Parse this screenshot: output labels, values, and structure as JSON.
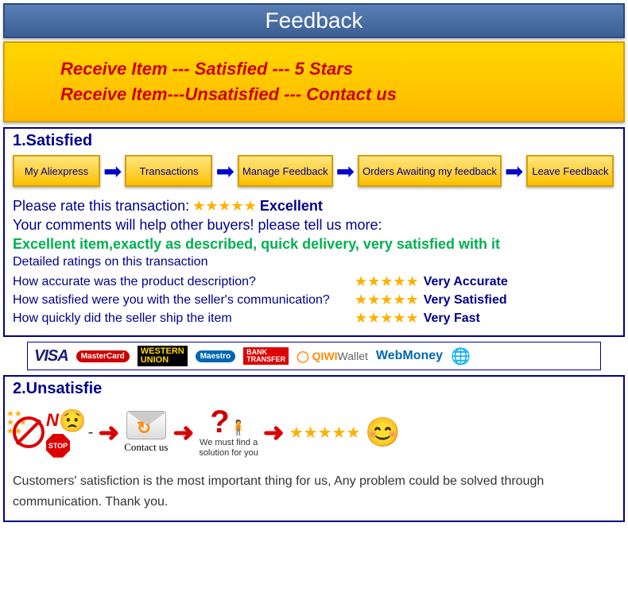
{
  "header": {
    "title": "Feedback"
  },
  "yellow": {
    "line1": "Receive  Item --- Satisfied  --- 5 Stars",
    "line2": "Receive  Item---Unsatisfied --- Contact us"
  },
  "satisfied": {
    "title": "1.Satisfied",
    "flow": [
      "My Aliexpress",
      "Transactions",
      "Manage Feedback",
      "Orders Awaiting my feedback",
      "Leave Feedback"
    ],
    "rate_prefix": "Please rate this transaction:",
    "rate_label": "Excellent",
    "comments_prompt": "Your comments will help other buyers! please tell us more:",
    "comment_example": "Excellent item,exactly as described, quick delivery, very satisfied with it",
    "detail_header": "Detailed ratings on this transaction",
    "details": [
      {
        "q": "How accurate was the product description?",
        "label": "Very Accurate"
      },
      {
        "q": "How satisfied were you with the seller's communication?",
        "label": "Very Satisfied"
      },
      {
        "q": "How quickly did the seller ship the item",
        "label": "Very Fast"
      }
    ]
  },
  "payments": {
    "visa": "VISA",
    "mastercard": "MasterCard",
    "western_union_1": "WESTERN",
    "western_union_2": "UNION",
    "maestro": "Maestro",
    "bank_1": "BANK",
    "bank_2": "TRANSFER",
    "qiwi": "QIWI",
    "qiwi2": "Wallet",
    "webmoney": "WebMoney"
  },
  "unsatisfied": {
    "title": "2.Unsatisfie",
    "no_text": "N",
    "stop": "STOP",
    "contact": "Contact us",
    "solution1": "We must find a",
    "solution2": "solution for you",
    "footer": "Customers' satisfiction is the most important thing for us, Any problem could be solved through communication. Thank you."
  },
  "colors": {
    "header_bg": "#3a5f95",
    "yellow_bg": "#ffc000",
    "border": "#00008b",
    "red": "#c00",
    "green": "#00b050",
    "star": "#ffb000"
  }
}
